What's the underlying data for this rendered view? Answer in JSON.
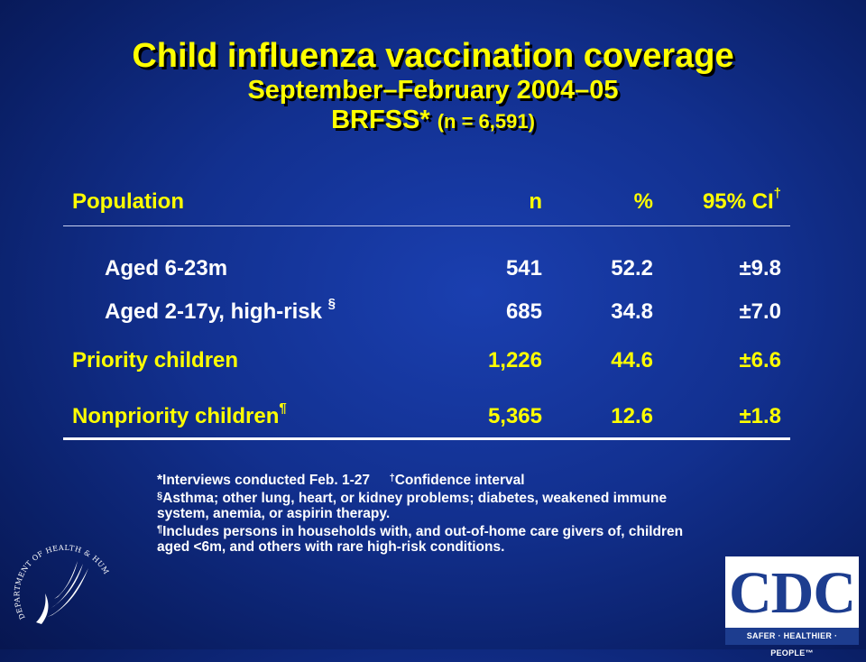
{
  "title": {
    "line1": "Child influenza vaccination coverage",
    "line2": "September–February 2004–05",
    "line3_main": "BRFSS* ",
    "line3_small": "(n = 6,591)"
  },
  "table": {
    "headers": {
      "population": "Population",
      "n": "n",
      "pct": "%",
      "ci": "95% CI",
      "ci_sup": "†"
    },
    "rows": [
      {
        "population": "Aged 6-23m",
        "sup": "",
        "n": "541",
        "pct": "52.2",
        "ci": "±9.8"
      },
      {
        "population": "Aged 2-17y, high-risk ",
        "sup": "§",
        "n": "685",
        "pct": "34.8",
        "ci": "±7.0"
      },
      {
        "population": "Priority children",
        "sup": "",
        "n": "1,226",
        "pct": "44.6",
        "ci": "±6.6"
      },
      {
        "population": "Nonpriority children",
        "sup": "¶",
        "n": "5,365",
        "pct": "12.6",
        "ci": "±1.8"
      }
    ]
  },
  "footnotes": {
    "f1": "*Interviews conducted Feb. 1-27",
    "f2_sup": "†",
    "f2": "Confidence interval",
    "f3_sup": "§",
    "f3": "Asthma; other lung, heart, or kidney problems; diabetes, weakened immune system, anemia, or aspirin therapy.",
    "f4_sup": "¶",
    "f4": "Includes persons in households with, and out-of-home care givers of, children aged <6m, and others with rare high-risk  conditions."
  },
  "logos": {
    "hhs_text": "DEPARTMENT OF HEALTH & HUMAN SERVICES · USA",
    "cdc_text": "CDC",
    "cdc_tagline": "SAFER · HEALTHIER · PEOPLE™"
  },
  "colors": {
    "title": "#ffff00",
    "background": "#12308f",
    "cdc_blue": "#1d3d8f"
  }
}
